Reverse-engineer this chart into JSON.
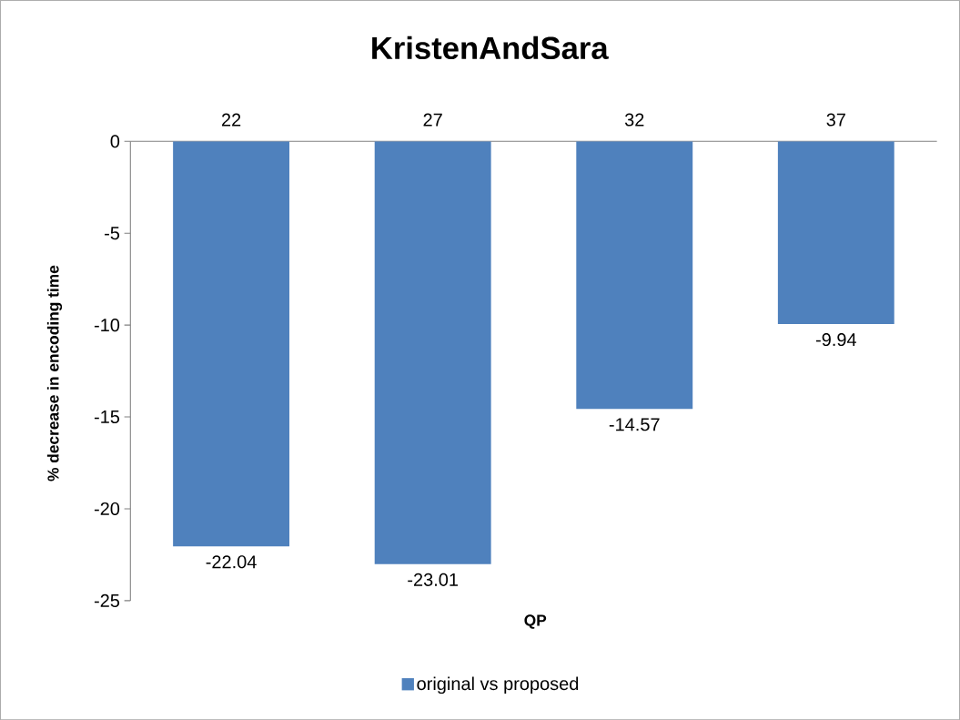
{
  "chart_data": {
    "type": "bar",
    "title": "KristenAndSara",
    "xlabel": "QP",
    "ylabel": "% decrease in encoding time",
    "categories": [
      "22",
      "27",
      "32",
      "37"
    ],
    "series": [
      {
        "name": "original vs proposed",
        "color": "#4f81bd",
        "values": [
          -22.04,
          -23.01,
          -14.57,
          -9.94
        ]
      }
    ],
    "ylim": [
      -25,
      0
    ],
    "yticks": [
      -25,
      -20,
      -15,
      -10,
      -5,
      0
    ],
    "data_labels": true,
    "legend": "bottom"
  }
}
